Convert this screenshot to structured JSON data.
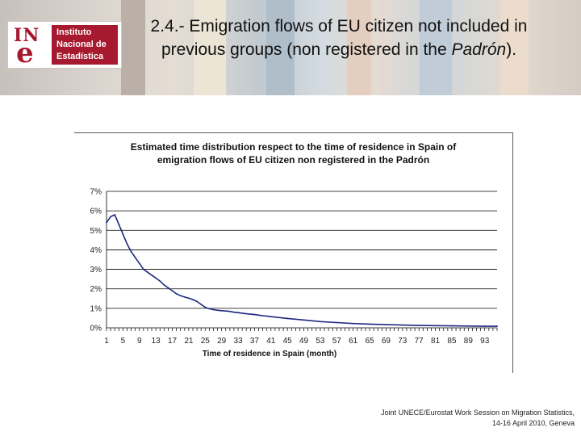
{
  "slide": {
    "title_part1": "2.4.- Emigration flows of EU citizen not included in previous groups (non registered in the ",
    "title_italic": "Padrón",
    "title_part2": ").",
    "footer_line1": "Joint UNECE/Eurostat Work Session on Migration Statistics,",
    "footer_line2": "14-16 April 2010, Geneva"
  },
  "logo": {
    "letters_top": "IN",
    "letter_bottom": "e",
    "line1": "Instituto",
    "line2": "Nacional de",
    "line3": "Estadística",
    "brand_color": "#a6192e"
  },
  "chart_data": {
    "type": "line",
    "title_line1": "Estimated time distribution respect to the time of residence in Spain of",
    "title_line2": "emigration flows of EU citizen non registered in the Padrón",
    "xlabel": "Time of residence in Spain (month)",
    "ylabel": "",
    "x_tick_labels": [
      "1",
      "5",
      "9",
      "13",
      "17",
      "21",
      "25",
      "29",
      "33",
      "37",
      "41",
      "45",
      "49",
      "53",
      "57",
      "61",
      "65",
      "69",
      "73",
      "77",
      "81",
      "85",
      "89",
      "93"
    ],
    "y_tick_labels": [
      "0%",
      "1%",
      "2%",
      "3%",
      "4%",
      "5%",
      "6%",
      "7%"
    ],
    "xlim": [
      1,
      96
    ],
    "ylim": [
      0,
      7
    ],
    "grid": "horizontal",
    "line_color": "#1f2a80",
    "series": [
      {
        "x": [
          1,
          2,
          3,
          4,
          5,
          6,
          7,
          8,
          9,
          10,
          11,
          12,
          13,
          14,
          15,
          16,
          17,
          18,
          19,
          20,
          21,
          22,
          23,
          24,
          25,
          26,
          27,
          28,
          29,
          30,
          31,
          32,
          33,
          34,
          35,
          36,
          37,
          38,
          39,
          40,
          41,
          45,
          49,
          53,
          57,
          61,
          65,
          69,
          73,
          77,
          81,
          85,
          89,
          93,
          96
        ],
        "values": [
          5.4,
          5.7,
          5.8,
          5.3,
          4.8,
          4.3,
          3.9,
          3.6,
          3.3,
          3.0,
          2.85,
          2.7,
          2.55,
          2.4,
          2.2,
          2.05,
          1.9,
          1.75,
          1.65,
          1.58,
          1.52,
          1.45,
          1.35,
          1.2,
          1.05,
          0.98,
          0.93,
          0.9,
          0.88,
          0.86,
          0.84,
          0.8,
          0.78,
          0.75,
          0.72,
          0.7,
          0.68,
          0.65,
          0.62,
          0.6,
          0.57,
          0.48,
          0.4,
          0.32,
          0.27,
          0.22,
          0.19,
          0.16,
          0.14,
          0.12,
          0.11,
          0.1,
          0.09,
          0.08,
          0.08
        ]
      }
    ]
  }
}
